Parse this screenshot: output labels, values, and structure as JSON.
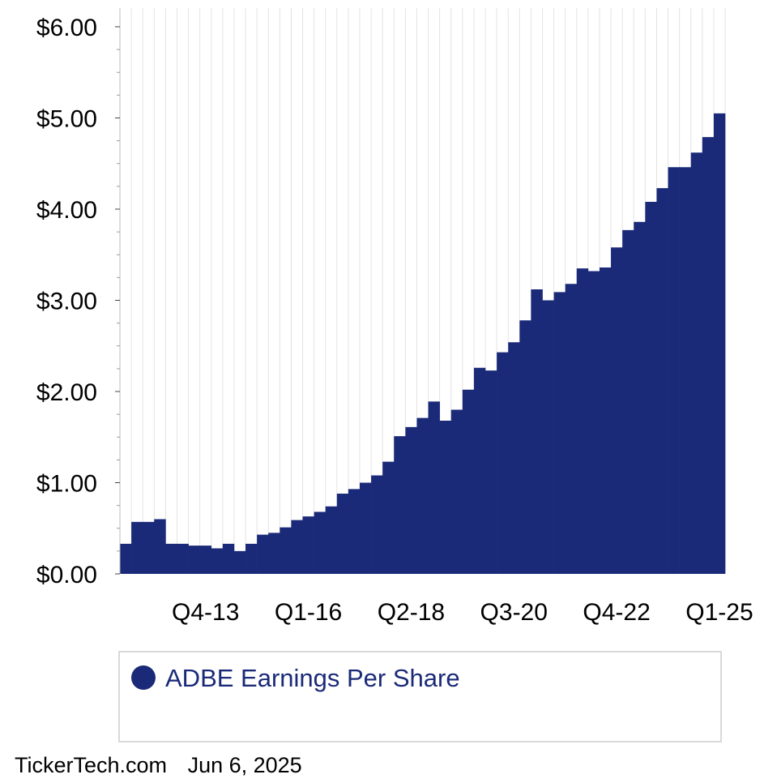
{
  "colors": {
    "bar": "#1a2a78",
    "grid": "#e3e3e3",
    "axis": "#bdbdbd",
    "legend_text": "#1a2a78"
  },
  "footer": {
    "site": "TickerTech.com",
    "date": "Jun 6, 2025"
  },
  "chart_data": {
    "type": "bar",
    "title": "",
    "xlabel": "",
    "ylabel": "",
    "ylim": [
      0,
      6
    ],
    "y_ticks": [
      "$0.00",
      "$1.00",
      "$2.00",
      "$3.00",
      "$4.00",
      "$5.00",
      "$6.00"
    ],
    "x_ticks": [
      {
        "label": "Q4-13",
        "index": 7
      },
      {
        "label": "Q1-16",
        "index": 16
      },
      {
        "label": "Q2-18",
        "index": 25
      },
      {
        "label": "Q3-20",
        "index": 34
      },
      {
        "label": "Q4-22",
        "index": 43
      },
      {
        "label": "Q1-25",
        "index": 52
      }
    ],
    "grid": true,
    "legend_position": "bottom",
    "series": [
      {
        "name": "ADBE Earnings Per Share",
        "values": [
          0.33,
          0.57,
          0.57,
          0.6,
          0.33,
          0.33,
          0.31,
          0.31,
          0.28,
          0.33,
          0.25,
          0.33,
          0.43,
          0.45,
          0.51,
          0.59,
          0.63,
          0.68,
          0.74,
          0.88,
          0.93,
          1.0,
          1.08,
          1.23,
          1.51,
          1.61,
          1.71,
          1.89,
          1.68,
          1.8,
          2.02,
          2.26,
          2.23,
          2.43,
          2.54,
          2.78,
          3.12,
          3.0,
          3.09,
          3.18,
          3.35,
          3.32,
          3.36,
          3.58,
          3.77,
          3.86,
          4.08,
          4.23,
          4.46,
          4.46,
          4.62,
          4.79,
          5.05
        ]
      }
    ]
  }
}
